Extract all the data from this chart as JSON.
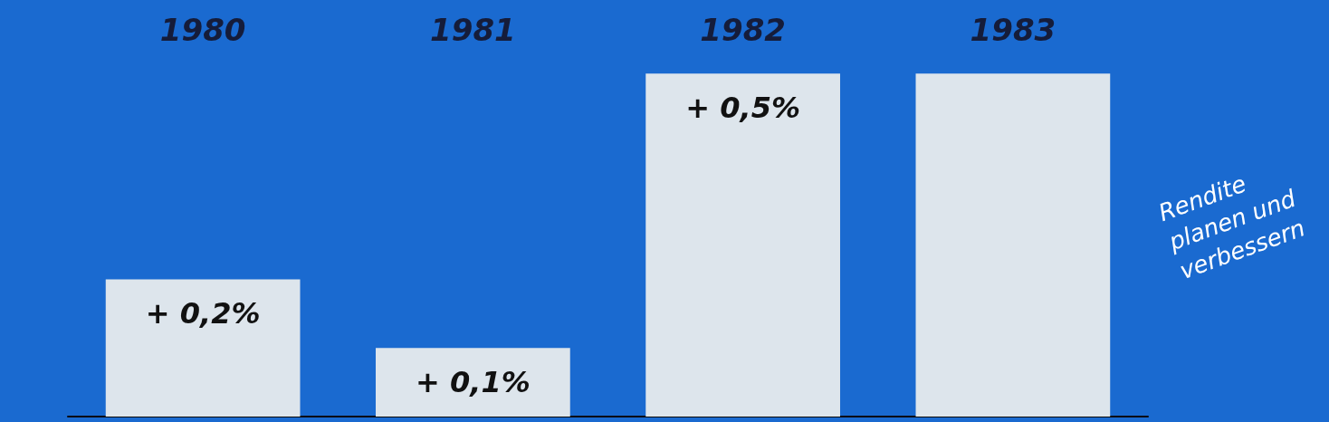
{
  "chart_data": {
    "type": "bar",
    "categories": [
      "1980",
      "1981",
      "1982",
      "1983"
    ],
    "values": [
      0.2,
      0.1,
      0.5,
      0.5
    ],
    "value_labels": [
      "+ 0,2%",
      "+ 0,1%",
      "+ 0,5%",
      null
    ],
    "color": "#dde5ec",
    "annotations": [
      "Rendite planen und verbessern"
    ]
  }
}
